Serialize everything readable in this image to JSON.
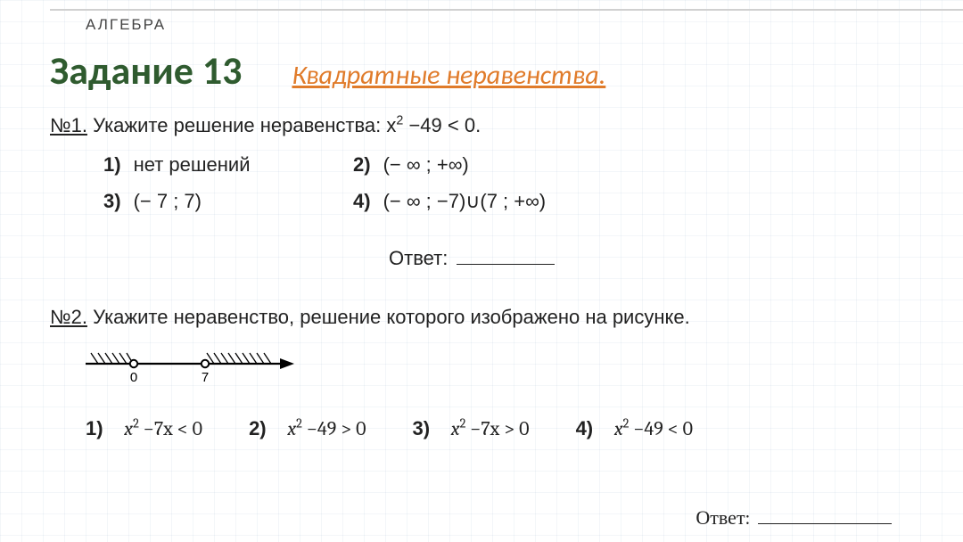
{
  "subject": "АЛГЕБРА",
  "task_title": "Задание 13",
  "topic": "Квадратные неравенства.",
  "colors": {
    "title": "#2f5b2f",
    "topic": "#e07b2a",
    "text": "#222222",
    "grid": "#dbe4ee",
    "background": "#ffffff"
  },
  "q1": {
    "num": "№1.",
    "prompt_prefix": "Укажите решение неравенства: ",
    "inequality_html": "x<sup>2</sup> −49 < 0.",
    "options": [
      {
        "n": "1)",
        "text": "нет решений"
      },
      {
        "n": "2)",
        "text": "(− ∞ ; +∞)"
      },
      {
        "n": "3)",
        "text": "(− 7 ; 7)"
      },
      {
        "n": "4)",
        "text": "(− ∞ ; −7)∪(7 ; +∞)"
      }
    ],
    "answer_label": "Ответ:"
  },
  "q2": {
    "num": "№2.",
    "prompt": "Укажите неравенство, решение которого изображено на рисунке.",
    "diagram": {
      "ticks": [
        0,
        7
      ],
      "arrow": true,
      "hatch_left": true,
      "hatch_right": true,
      "open_points": [
        0,
        7
      ],
      "line_color": "#000000"
    },
    "options": [
      {
        "n": "1)",
        "html": "<span class='math'>x</span><sup>2</sup> −7x < 0"
      },
      {
        "n": "2)",
        "html": "<span class='math'>x</span><sup>2</sup> −49 > 0"
      },
      {
        "n": "3)",
        "html": "<span class='math'>x</span><sup>2</sup> −7x > 0"
      },
      {
        "n": "4)",
        "html": "<span class='math'>x</span><sup>2</sup> −49 < 0"
      }
    ],
    "answer_label": "Ответ:"
  }
}
